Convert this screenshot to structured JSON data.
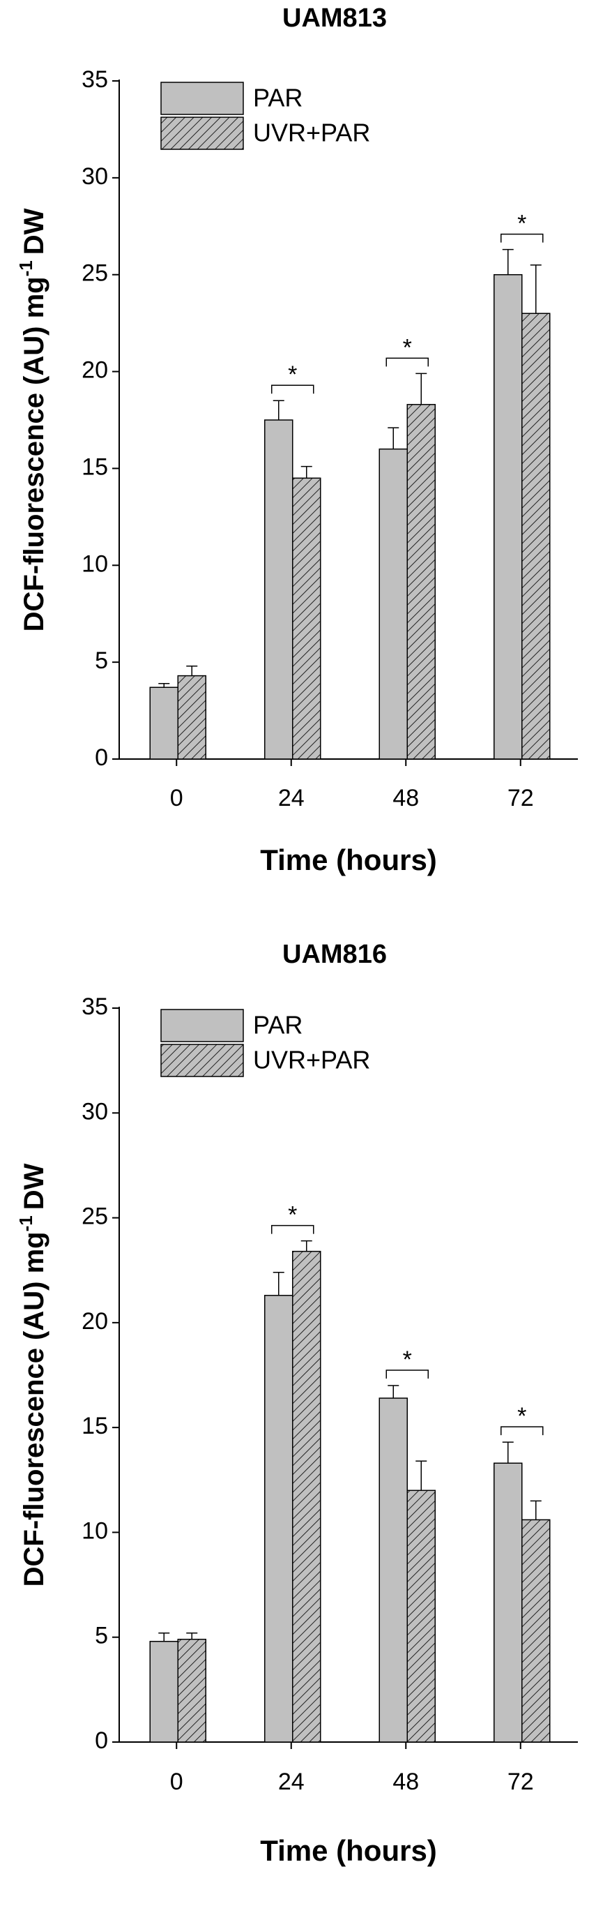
{
  "chart_data": [
    {
      "type": "bar",
      "title": "UAM813",
      "x_label": "Time (hours)",
      "y_label": {
        "text": "DCF-fluorescence (AU) mg",
        "superscript": "-1",
        "suffix": "DW"
      },
      "categories": [
        "0",
        "24",
        "48",
        "72"
      ],
      "series": [
        {
          "name": "PAR",
          "color": "#c0c0c0",
          "pattern": "solid",
          "values": [
            3.7,
            17.5,
            16.0,
            25.0
          ],
          "errors": [
            0.2,
            1.0,
            1.1,
            1.3
          ]
        },
        {
          "name": "UVR+PAR",
          "color": "#c0c0c0",
          "pattern": "hatch",
          "values": [
            4.3,
            14.5,
            18.3,
            23.0
          ],
          "errors": [
            0.5,
            0.6,
            1.6,
            2.5
          ]
        }
      ],
      "significance": [
        null,
        "*",
        "*",
        "*"
      ],
      "ylim": [
        0,
        35
      ],
      "yticks": [
        0,
        5,
        10,
        15,
        20,
        25,
        30,
        35
      ],
      "legend": "upper left",
      "grid": false
    },
    {
      "type": "bar",
      "title": "UAM816",
      "x_label": "Time (hours)",
      "y_label": {
        "text": "DCF-fluorescence (AU) mg",
        "superscript": "-1",
        "suffix": "DW"
      },
      "categories": [
        "0",
        "24",
        "48",
        "72"
      ],
      "series": [
        {
          "name": "PAR",
          "color": "#c0c0c0",
          "pattern": "solid",
          "values": [
            4.8,
            21.3,
            16.4,
            13.3
          ],
          "errors": [
            0.4,
            1.1,
            0.6,
            1.0
          ]
        },
        {
          "name": "UVR+PAR",
          "color": "#c0c0c0",
          "pattern": "hatch",
          "values": [
            4.9,
            23.4,
            12.0,
            10.6
          ],
          "errors": [
            0.3,
            0.5,
            1.4,
            0.9
          ]
        }
      ],
      "significance": [
        null,
        "*",
        "*",
        "*"
      ],
      "ylim": [
        0,
        35
      ],
      "yticks": [
        0,
        5,
        10,
        15,
        20,
        25,
        30,
        35
      ],
      "legend": "upper left",
      "grid": false
    }
  ]
}
